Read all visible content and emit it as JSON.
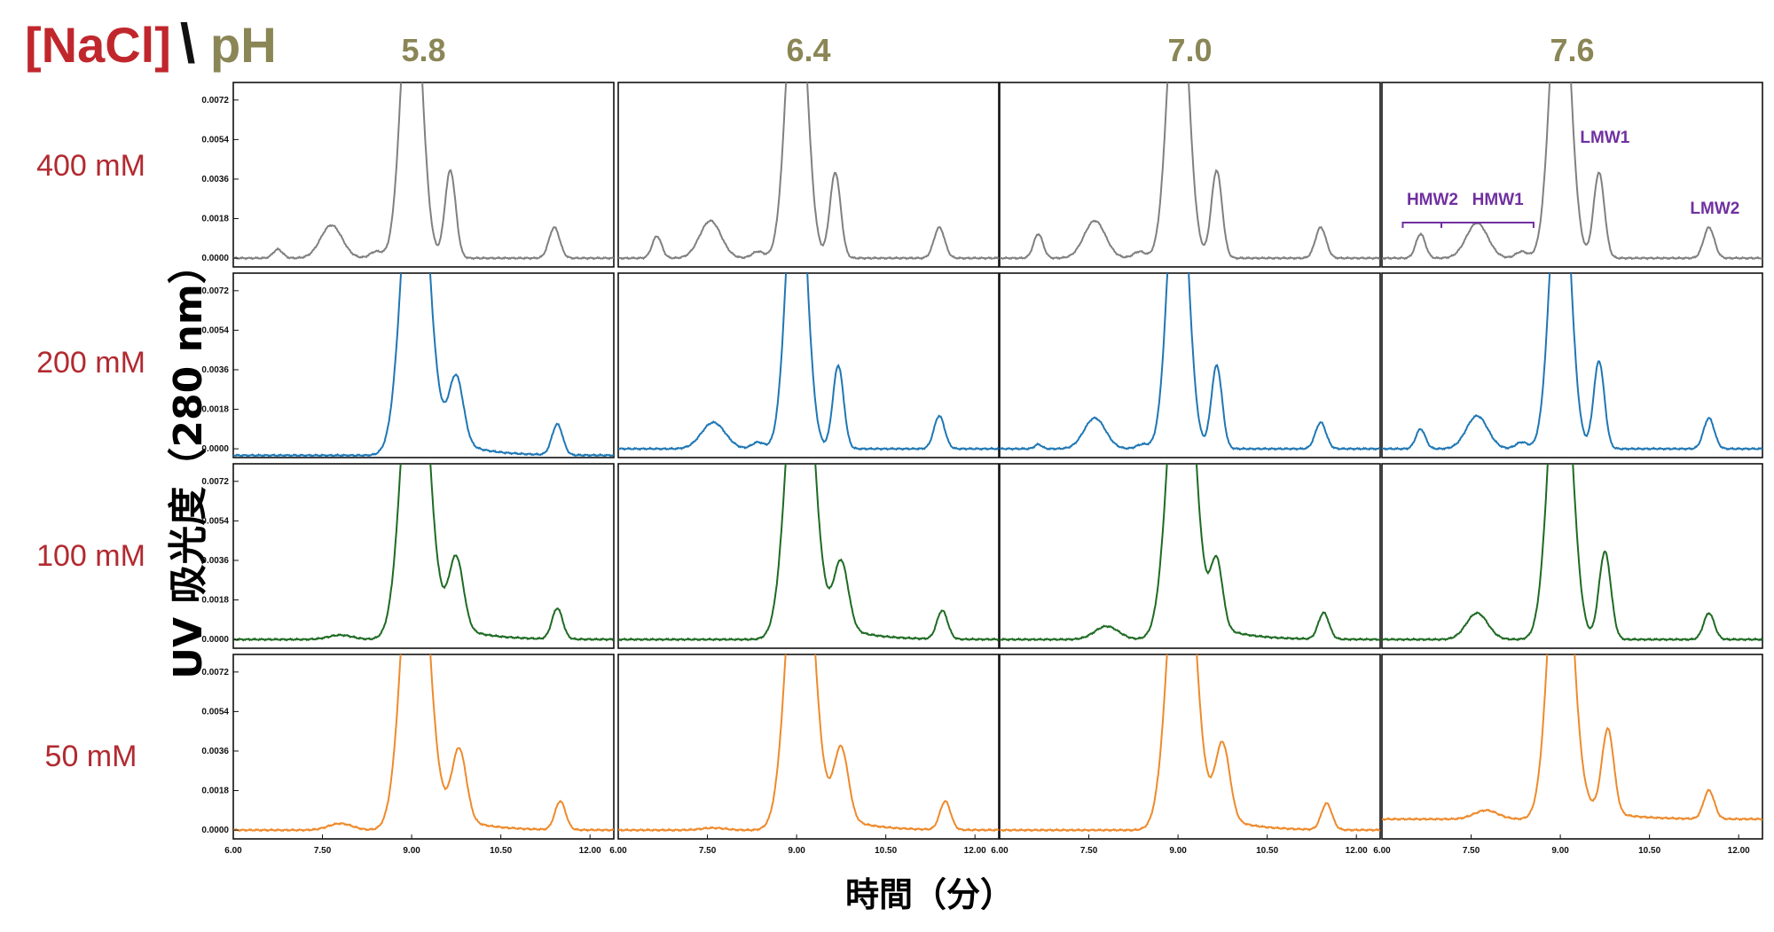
{
  "header": {
    "nacl_label": "[NaCl]",
    "separator": "\\",
    "ph_label": "pH"
  },
  "y_axis_label": "UV 吸光度（280 nm）",
  "x_axis_label": "時間（分）",
  "colors": {
    "nacl": "#c0272d",
    "ph": "#8a8656",
    "peak_labels": "#7030a0",
    "series": {
      "400 mM": "#808080",
      "200 mM": "#1f77b4",
      "100 mM": "#1e6b23",
      "50 mM": "#ee8a2c"
    }
  },
  "chart_data": {
    "type": "line",
    "layout": "grid of chromatograms (rows = [NaCl], columns = pH)",
    "pH_values": [
      "5.8",
      "6.4",
      "7.0",
      "7.6"
    ],
    "nacl_values": [
      "400 mM",
      "200 mM",
      "100 mM",
      "50 mM"
    ],
    "xlabel": "時間（分）",
    "ylabel": "UV 吸光度（280 nm）",
    "xlim": [
      6.0,
      12.4
    ],
    "ylim": [
      -0.0004,
      0.008
    ],
    "x_ticks": [
      "6.00",
      "7.50",
      "9.00",
      "10.50",
      "12.00"
    ],
    "x_tick_values": [
      6.0,
      7.5,
      9.0,
      10.5,
      12.0
    ],
    "y_ticks": [
      "0.0000",
      "0.0018",
      "0.0036",
      "0.0054",
      "0.0072"
    ],
    "y_tick_values": [
      0.0,
      0.0018,
      0.0036,
      0.0054,
      0.0072
    ],
    "grid": false,
    "peak_labels": [
      {
        "text": "HMW2",
        "pH": "7.6",
        "nacl": "400 mM",
        "time": 6.85
      },
      {
        "text": "HMW1",
        "pH": "7.6",
        "nacl": "400 mM",
        "time": 7.95
      },
      {
        "text": "LMW1",
        "pH": "7.6",
        "nacl": "400 mM",
        "time": 9.75
      },
      {
        "text": "LMW2",
        "pH": "7.6",
        "nacl": "400 mM",
        "time": 11.6
      }
    ],
    "series": [
      {
        "name": "400 mM",
        "pH": "5.8",
        "baseline": 0.0,
        "peaks": [
          [
            6.75,
            0.0004,
            0.08
          ],
          [
            7.65,
            0.0015,
            0.18
          ],
          [
            8.4,
            0.0003,
            0.1
          ],
          [
            9.0,
            0.015,
            0.16
          ],
          [
            9.65,
            0.004,
            0.09
          ],
          [
            11.4,
            0.0014,
            0.09
          ]
        ]
      },
      {
        "name": "400 mM",
        "pH": "6.4",
        "baseline": 0.0,
        "peaks": [
          [
            6.65,
            0.001,
            0.08
          ],
          [
            7.55,
            0.0017,
            0.18
          ],
          [
            8.35,
            0.0003,
            0.1
          ],
          [
            9.0,
            0.015,
            0.16
          ],
          [
            9.65,
            0.0039,
            0.09
          ],
          [
            11.4,
            0.0014,
            0.09
          ]
        ]
      },
      {
        "name": "400 mM",
        "pH": "7.0",
        "baseline": 0.0,
        "peaks": [
          [
            6.65,
            0.0011,
            0.08
          ],
          [
            7.6,
            0.0017,
            0.18
          ],
          [
            8.35,
            0.0003,
            0.1
          ],
          [
            9.0,
            0.015,
            0.16
          ],
          [
            9.65,
            0.004,
            0.09
          ],
          [
            11.4,
            0.0014,
            0.09
          ]
        ]
      },
      {
        "name": "400 mM",
        "pH": "7.6",
        "baseline": 0.0,
        "peaks": [
          [
            6.65,
            0.0011,
            0.08
          ],
          [
            7.6,
            0.0016,
            0.18
          ],
          [
            8.35,
            0.0003,
            0.1
          ],
          [
            9.0,
            0.015,
            0.16
          ],
          [
            9.65,
            0.0039,
            0.09
          ],
          [
            11.5,
            0.0014,
            0.09
          ]
        ]
      },
      {
        "name": "200 mM",
        "pH": "5.8",
        "baseline": -0.0003,
        "peaks": [
          [
            9.05,
            0.016,
            0.2
          ],
          [
            9.75,
            0.003,
            0.12
          ],
          [
            11.45,
            0.0014,
            0.09
          ]
        ],
        "tail": [
          0.0026,
          0.5
        ]
      },
      {
        "name": "200 mM",
        "pH": "6.4",
        "baseline": 0.0,
        "peaks": [
          [
            7.6,
            0.0012,
            0.2
          ],
          [
            8.35,
            0.0003,
            0.1
          ],
          [
            9.0,
            0.015,
            0.16
          ],
          [
            9.7,
            0.0038,
            0.09
          ],
          [
            11.4,
            0.0015,
            0.09
          ]
        ]
      },
      {
        "name": "200 mM",
        "pH": "7.0",
        "baseline": 0.0,
        "peaks": [
          [
            6.65,
            0.0002,
            0.06
          ],
          [
            7.6,
            0.0014,
            0.18
          ],
          [
            8.4,
            0.0002,
            0.1
          ],
          [
            9.0,
            0.015,
            0.16
          ],
          [
            9.65,
            0.0038,
            0.09
          ],
          [
            11.4,
            0.0012,
            0.09
          ]
        ]
      },
      {
        "name": "200 mM",
        "pH": "7.6",
        "baseline": 0.0,
        "peaks": [
          [
            6.65,
            0.0009,
            0.08
          ],
          [
            7.6,
            0.0015,
            0.18
          ],
          [
            8.35,
            0.0003,
            0.1
          ],
          [
            9.0,
            0.015,
            0.16
          ],
          [
            9.65,
            0.004,
            0.09
          ],
          [
            11.5,
            0.0014,
            0.09
          ]
        ]
      },
      {
        "name": "100 mM",
        "pH": "5.8",
        "baseline": 0.0,
        "peaks": [
          [
            7.8,
            0.0002,
            0.2
          ],
          [
            9.05,
            0.016,
            0.2
          ],
          [
            9.75,
            0.0032,
            0.12
          ],
          [
            11.45,
            0.0014,
            0.09
          ]
        ],
        "tail": [
          0.0024,
          0.5
        ]
      },
      {
        "name": "100 mM",
        "pH": "6.4",
        "baseline": 0.0,
        "peaks": [
          [
            9.05,
            0.016,
            0.2
          ],
          [
            9.75,
            0.003,
            0.12
          ],
          [
            11.45,
            0.0013,
            0.09
          ]
        ],
        "tail": [
          0.0024,
          0.5
        ]
      },
      {
        "name": "100 mM",
        "pH": "7.0",
        "baseline": 0.0,
        "peaks": [
          [
            7.8,
            0.0006,
            0.2
          ],
          [
            9.05,
            0.016,
            0.2
          ],
          [
            9.65,
            0.003,
            0.1
          ],
          [
            11.45,
            0.0012,
            0.09
          ]
        ],
        "tail": [
          0.002,
          0.5
        ]
      },
      {
        "name": "100 mM",
        "pH": "7.6",
        "baseline": 0.0,
        "peaks": [
          [
            7.6,
            0.0012,
            0.18
          ],
          [
            9.0,
            0.016,
            0.18
          ],
          [
            9.75,
            0.004,
            0.1
          ],
          [
            11.5,
            0.0012,
            0.09
          ]
        ]
      },
      {
        "name": "50 mM",
        "pH": "5.8",
        "baseline": 0.0,
        "peaks": [
          [
            7.8,
            0.0003,
            0.2
          ],
          [
            9.05,
            0.016,
            0.2
          ],
          [
            9.8,
            0.0032,
            0.12
          ],
          [
            11.5,
            0.0013,
            0.09
          ]
        ],
        "tail": [
          0.0024,
          0.5
        ]
      },
      {
        "name": "50 mM",
        "pH": "6.4",
        "baseline": 0.0,
        "peaks": [
          [
            7.6,
            0.0001,
            0.2
          ],
          [
            9.05,
            0.016,
            0.2
          ],
          [
            9.75,
            0.0032,
            0.12
          ],
          [
            11.5,
            0.0013,
            0.09
          ]
        ],
        "tail": [
          0.0024,
          0.5
        ]
      },
      {
        "name": "50 mM",
        "pH": "7.0",
        "baseline": 0.0,
        "peaks": [
          [
            9.05,
            0.016,
            0.2
          ],
          [
            9.75,
            0.0034,
            0.12
          ],
          [
            11.5,
            0.0012,
            0.09
          ]
        ],
        "tail": [
          0.0024,
          0.5
        ]
      },
      {
        "name": "50 mM",
        "pH": "7.6",
        "baseline": 0.0005,
        "peaks": [
          [
            7.75,
            0.0004,
            0.2
          ],
          [
            9.0,
            0.016,
            0.18
          ],
          [
            9.8,
            0.0038,
            0.1
          ],
          [
            11.5,
            0.0013,
            0.09
          ]
        ],
        "tail": [
          0.0016,
          0.5
        ]
      }
    ]
  }
}
